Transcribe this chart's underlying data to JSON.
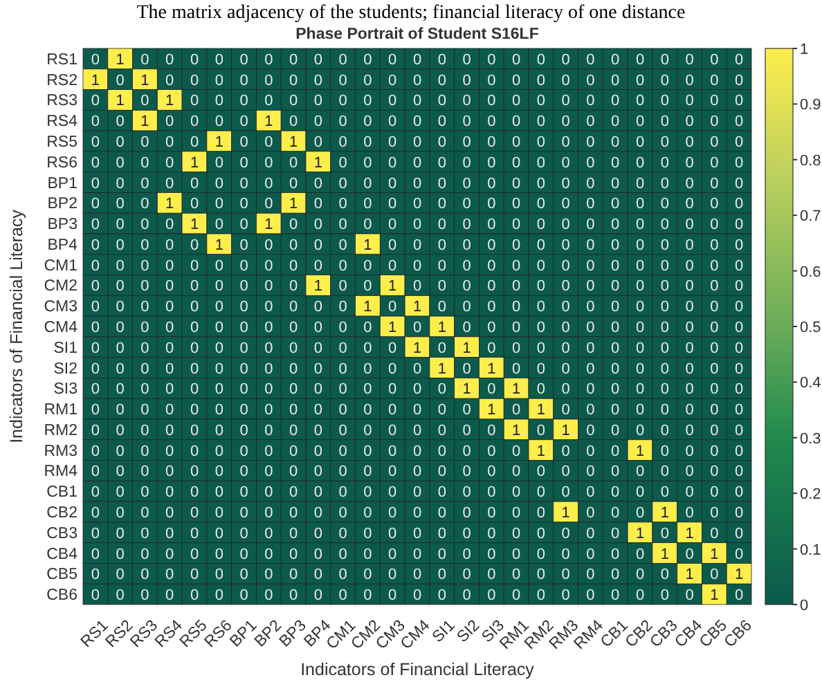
{
  "chart_data": {
    "type": "heatmap",
    "title": "The matrix adjacency of the students; financial literacy of one distance",
    "subtitle": "Phase Portrait of Student S16LF",
    "xlabel": "Indicators of Financial Literacy",
    "ylabel": "Indicators of Financial Literacy",
    "categories": [
      "RS1",
      "RS2",
      "RS3",
      "RS4",
      "RS5",
      "RS6",
      "BP1",
      "BP2",
      "BP3",
      "BP4",
      "CM1",
      "CM2",
      "CM3",
      "CM4",
      "SI1",
      "SI2",
      "SI3",
      "RM1",
      "RM2",
      "RM3",
      "RM4",
      "CB1",
      "CB2",
      "CB3",
      "CB4",
      "CB5",
      "CB6"
    ],
    "y_categories": [
      "RS1",
      "RS2",
      "RS3",
      "RS4",
      "RS5",
      "RS6",
      "BP1",
      "BP2",
      "BP3",
      "BP4",
      "CM1",
      "CM2",
      "CM3",
      "CM4",
      "SI1",
      "SI2",
      "SI3",
      "RM1",
      "RM2",
      "RM3",
      "RM4",
      "CB1",
      "CB2",
      "CB3",
      "CB4",
      "CB5",
      "CB6"
    ],
    "cells": [
      [
        0,
        1,
        0,
        0,
        0,
        0,
        0,
        0,
        0,
        0,
        0,
        0,
        0,
        0,
        0,
        0,
        0,
        0,
        0,
        0,
        0,
        0,
        0,
        0,
        0,
        0,
        0
      ],
      [
        1,
        0,
        1,
        0,
        0,
        0,
        0,
        0,
        0,
        0,
        0,
        0,
        0,
        0,
        0,
        0,
        0,
        0,
        0,
        0,
        0,
        0,
        0,
        0,
        0,
        0,
        0
      ],
      [
        0,
        1,
        0,
        1,
        0,
        0,
        0,
        0,
        0,
        0,
        0,
        0,
        0,
        0,
        0,
        0,
        0,
        0,
        0,
        0,
        0,
        0,
        0,
        0,
        0,
        0,
        0
      ],
      [
        0,
        0,
        1,
        0,
        0,
        0,
        0,
        1,
        0,
        0,
        0,
        0,
        0,
        0,
        0,
        0,
        0,
        0,
        0,
        0,
        0,
        0,
        0,
        0,
        0,
        0,
        0
      ],
      [
        0,
        0,
        0,
        0,
        0,
        1,
        0,
        0,
        1,
        0,
        0,
        0,
        0,
        0,
        0,
        0,
        0,
        0,
        0,
        0,
        0,
        0,
        0,
        0,
        0,
        0,
        0
      ],
      [
        0,
        0,
        0,
        0,
        1,
        0,
        0,
        0,
        0,
        1,
        0,
        0,
        0,
        0,
        0,
        0,
        0,
        0,
        0,
        0,
        0,
        0,
        0,
        0,
        0,
        0,
        0
      ],
      [
        0,
        0,
        0,
        0,
        0,
        0,
        0,
        0,
        0,
        0,
        0,
        0,
        0,
        0,
        0,
        0,
        0,
        0,
        0,
        0,
        0,
        0,
        0,
        0,
        0,
        0,
        0
      ],
      [
        0,
        0,
        0,
        1,
        0,
        0,
        0,
        0,
        1,
        0,
        0,
        0,
        0,
        0,
        0,
        0,
        0,
        0,
        0,
        0,
        0,
        0,
        0,
        0,
        0,
        0,
        0
      ],
      [
        0,
        0,
        0,
        0,
        1,
        0,
        0,
        1,
        0,
        0,
        0,
        0,
        0,
        0,
        0,
        0,
        0,
        0,
        0,
        0,
        0,
        0,
        0,
        0,
        0,
        0,
        0
      ],
      [
        0,
        0,
        0,
        0,
        0,
        1,
        0,
        0,
        0,
        0,
        0,
        1,
        0,
        0,
        0,
        0,
        0,
        0,
        0,
        0,
        0,
        0,
        0,
        0,
        0,
        0,
        0
      ],
      [
        0,
        0,
        0,
        0,
        0,
        0,
        0,
        0,
        0,
        0,
        0,
        0,
        0,
        0,
        0,
        0,
        0,
        0,
        0,
        0,
        0,
        0,
        0,
        0,
        0,
        0,
        0
      ],
      [
        0,
        0,
        0,
        0,
        0,
        0,
        0,
        0,
        0,
        1,
        0,
        0,
        1,
        0,
        0,
        0,
        0,
        0,
        0,
        0,
        0,
        0,
        0,
        0,
        0,
        0,
        0
      ],
      [
        0,
        0,
        0,
        0,
        0,
        0,
        0,
        0,
        0,
        0,
        0,
        1,
        0,
        1,
        0,
        0,
        0,
        0,
        0,
        0,
        0,
        0,
        0,
        0,
        0,
        0,
        0
      ],
      [
        0,
        0,
        0,
        0,
        0,
        0,
        0,
        0,
        0,
        0,
        0,
        0,
        1,
        0,
        1,
        0,
        0,
        0,
        0,
        0,
        0,
        0,
        0,
        0,
        0,
        0,
        0
      ],
      [
        0,
        0,
        0,
        0,
        0,
        0,
        0,
        0,
        0,
        0,
        0,
        0,
        0,
        1,
        0,
        1,
        0,
        0,
        0,
        0,
        0,
        0,
        0,
        0,
        0,
        0,
        0
      ],
      [
        0,
        0,
        0,
        0,
        0,
        0,
        0,
        0,
        0,
        0,
        0,
        0,
        0,
        0,
        1,
        0,
        1,
        0,
        0,
        0,
        0,
        0,
        0,
        0,
        0,
        0,
        0
      ],
      [
        0,
        0,
        0,
        0,
        0,
        0,
        0,
        0,
        0,
        0,
        0,
        0,
        0,
        0,
        0,
        1,
        0,
        1,
        0,
        0,
        0,
        0,
        0,
        0,
        0,
        0,
        0
      ],
      [
        0,
        0,
        0,
        0,
        0,
        0,
        0,
        0,
        0,
        0,
        0,
        0,
        0,
        0,
        0,
        0,
        1,
        0,
        1,
        0,
        0,
        0,
        0,
        0,
        0,
        0,
        0
      ],
      [
        0,
        0,
        0,
        0,
        0,
        0,
        0,
        0,
        0,
        0,
        0,
        0,
        0,
        0,
        0,
        0,
        0,
        1,
        0,
        1,
        0,
        0,
        0,
        0,
        0,
        0,
        0
      ],
      [
        0,
        0,
        0,
        0,
        0,
        0,
        0,
        0,
        0,
        0,
        0,
        0,
        0,
        0,
        0,
        0,
        0,
        0,
        1,
        0,
        0,
        0,
        1,
        0,
        0,
        0,
        0
      ],
      [
        0,
        0,
        0,
        0,
        0,
        0,
        0,
        0,
        0,
        0,
        0,
        0,
        0,
        0,
        0,
        0,
        0,
        0,
        0,
        0,
        0,
        0,
        0,
        0,
        0,
        0,
        0
      ],
      [
        0,
        0,
        0,
        0,
        0,
        0,
        0,
        0,
        0,
        0,
        0,
        0,
        0,
        0,
        0,
        0,
        0,
        0,
        0,
        0,
        0,
        0,
        0,
        0,
        0,
        0,
        0
      ],
      [
        0,
        0,
        0,
        0,
        0,
        0,
        0,
        0,
        0,
        0,
        0,
        0,
        0,
        0,
        0,
        0,
        0,
        0,
        0,
        1,
        0,
        0,
        0,
        1,
        0,
        0,
        0
      ],
      [
        0,
        0,
        0,
        0,
        0,
        0,
        0,
        0,
        0,
        0,
        0,
        0,
        0,
        0,
        0,
        0,
        0,
        0,
        0,
        0,
        0,
        0,
        1,
        0,
        1,
        0,
        0
      ],
      [
        0,
        0,
        0,
        0,
        0,
        0,
        0,
        0,
        0,
        0,
        0,
        0,
        0,
        0,
        0,
        0,
        0,
        0,
        0,
        0,
        0,
        0,
        0,
        1,
        0,
        1,
        0
      ],
      [
        0,
        0,
        0,
        0,
        0,
        0,
        0,
        0,
        0,
        0,
        0,
        0,
        0,
        0,
        0,
        0,
        0,
        0,
        0,
        0,
        0,
        0,
        0,
        0,
        1,
        0,
        1
      ],
      [
        0,
        0,
        0,
        0,
        0,
        0,
        0,
        0,
        0,
        0,
        0,
        0,
        0,
        0,
        0,
        0,
        0,
        0,
        0,
        0,
        0,
        0,
        0,
        0,
        0,
        1,
        0
      ]
    ],
    "data_labels": true,
    "clim": [
      0,
      1
    ],
    "cticks": [
      0,
      0.1,
      0.2,
      0.3,
      0.4,
      0.5,
      0.6,
      0.7,
      0.8,
      0.9,
      1
    ]
  }
}
